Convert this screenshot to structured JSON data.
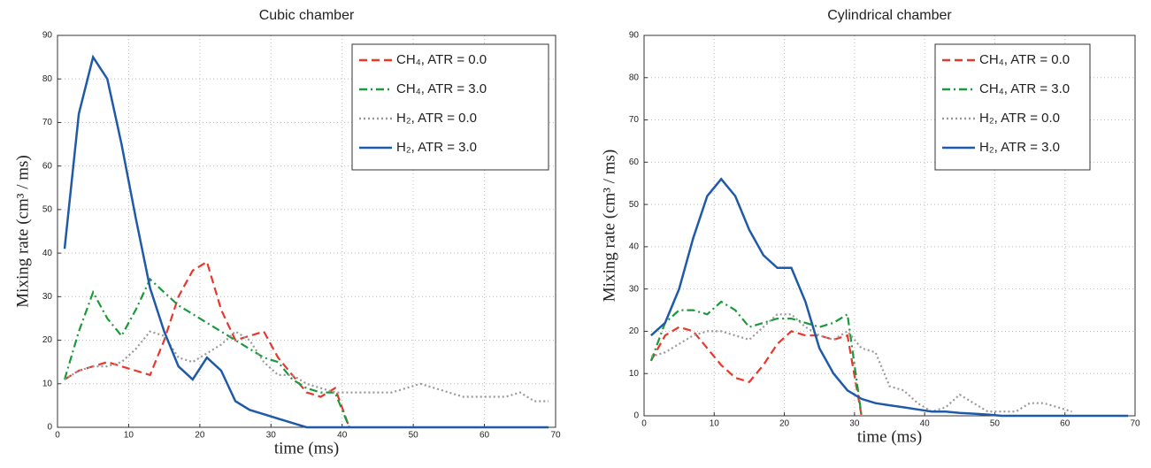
{
  "chart_data": [
    {
      "type": "line",
      "title": "Cubic chamber",
      "x_label": "time (ms)",
      "y_label": "Mixing rate (cm³ / ms)",
      "x": [
        1,
        3,
        5,
        7,
        9,
        11,
        13,
        15,
        17,
        19,
        21,
        23,
        25,
        27,
        29,
        31,
        33,
        35,
        37,
        39,
        41,
        43,
        45,
        47,
        49,
        51,
        53,
        55,
        57,
        59,
        61,
        63,
        65,
        67,
        69
      ],
      "series": [
        {
          "name": "CH₄, ATR = 0.0",
          "color": "#e8372c",
          "style": "dashed",
          "values": [
            11,
            13,
            14,
            15,
            14,
            13,
            12,
            20,
            30,
            36,
            38,
            27,
            20,
            21,
            22,
            16,
            12,
            8,
            7,
            9,
            0,
            null,
            null,
            null,
            null,
            null,
            null,
            null,
            null,
            null,
            null,
            null,
            null,
            null,
            null
          ]
        },
        {
          "name": "CH₄, ATR = 3.0",
          "color": "#1a9a3a",
          "style": "dashdot",
          "values": [
            11,
            22,
            31,
            25,
            21,
            27,
            34,
            31,
            28,
            26,
            24,
            22,
            20,
            18,
            16,
            15,
            11,
            9,
            8,
            8,
            0,
            null,
            null,
            null,
            null,
            null,
            null,
            null,
            null,
            null,
            null,
            null,
            null,
            null,
            null
          ]
        },
        {
          "name": "H₂, ATR = 0.0",
          "color": "#999999",
          "style": "dotted",
          "values": [
            11,
            13,
            14,
            14,
            15,
            18,
            22,
            21,
            16,
            15,
            17,
            19,
            22,
            20,
            15,
            12,
            12,
            10,
            9,
            8,
            8,
            8,
            8,
            8,
            9,
            10,
            9,
            8,
            7,
            7,
            7,
            7,
            8,
            6,
            6
          ]
        },
        {
          "name": "H₂, ATR = 3.0",
          "color": "#1f5aa8",
          "style": "solid",
          "values": [
            41,
            72,
            85,
            80,
            65,
            48,
            32,
            22,
            14,
            11,
            16,
            13,
            6,
            4,
            3,
            2,
            1,
            0,
            0,
            0,
            0,
            0,
            0,
            0,
            0,
            0,
            0,
            0,
            0,
            0,
            0,
            0,
            0,
            0,
            0
          ]
        }
      ],
      "xlim": [
        0,
        70
      ],
      "xticks": [
        0,
        10,
        20,
        30,
        40,
        50,
        60,
        70
      ],
      "ylim": [
        0,
        90
      ],
      "yticks": [
        0,
        10,
        20,
        30,
        40,
        50,
        60,
        70,
        80,
        90
      ],
      "grid": true,
      "legend": "upper right"
    },
    {
      "type": "line",
      "title": "Cylindrical chamber",
      "x_label": "time (ms)",
      "y_label": "Mixing rate (cm³ / ms)",
      "x": [
        1,
        3,
        5,
        7,
        9,
        11,
        13,
        15,
        17,
        19,
        21,
        23,
        25,
        27,
        29,
        31,
        33,
        35,
        37,
        39,
        41,
        43,
        45,
        47,
        49,
        51,
        53,
        55,
        57,
        59,
        61,
        63,
        65,
        67,
        69
      ],
      "series": [
        {
          "name": "CH₄, ATR = 0.0",
          "color": "#e8372c",
          "style": "dashed",
          "values": [
            13,
            19,
            21,
            20,
            16,
            12,
            9,
            8,
            12,
            17,
            20,
            19,
            19,
            18,
            19,
            0,
            null,
            null,
            null,
            null,
            null,
            null,
            null,
            null,
            null,
            null,
            null,
            null,
            null,
            null,
            null,
            null,
            null,
            null,
            null
          ]
        },
        {
          "name": "CH₄, ATR = 3.0",
          "color": "#1a9a3a",
          "style": "dashdot",
          "values": [
            13,
            22,
            25,
            25,
            24,
            27,
            25,
            21,
            22,
            23,
            23,
            22,
            21,
            22,
            24,
            0,
            null,
            null,
            null,
            null,
            null,
            null,
            null,
            null,
            null,
            null,
            null,
            null,
            null,
            null,
            null,
            null,
            null,
            null,
            null
          ]
        },
        {
          "name": "H₂, ATR = 0.0",
          "color": "#999999",
          "style": "dotted",
          "values": [
            14,
            15,
            17,
            19,
            20,
            20,
            19,
            18,
            21,
            24,
            24,
            21,
            19,
            18,
            20,
            16,
            15,
            7,
            6,
            3,
            1,
            2,
            5,
            3,
            1,
            1,
            1,
            3,
            3,
            2,
            1,
            null,
            null,
            null,
            null
          ]
        },
        {
          "name": "H₂, ATR = 3.0",
          "color": "#1f5aa8",
          "style": "solid",
          "values": [
            19,
            22,
            30,
            42,
            52,
            56,
            52,
            44,
            38,
            35,
            35,
            27,
            16,
            10,
            6,
            4,
            3,
            2.5,
            2,
            1.5,
            1,
            1,
            0.7,
            0.5,
            0.3,
            0,
            0,
            0,
            0,
            0,
            0,
            0,
            0,
            0,
            0
          ]
        }
      ],
      "xlim": [
        0,
        70
      ],
      "xticks": [
        0,
        10,
        20,
        30,
        40,
        50,
        60,
        70
      ],
      "ylim": [
        0,
        90
      ],
      "yticks": [
        0,
        10,
        20,
        30,
        40,
        50,
        60,
        70,
        80,
        90
      ],
      "grid": true,
      "legend": "upper right"
    }
  ]
}
